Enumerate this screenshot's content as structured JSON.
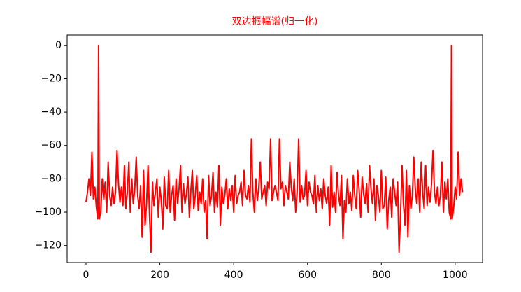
{
  "chart_data": {
    "type": "line",
    "title": "双边振幅谱(归一化)",
    "title_color": "#ff0000",
    "color": "#ff0000",
    "xlim": [
      -51.15,
      1074.15
    ],
    "ylim": [
      -130.2,
      6.2
    ],
    "xticks": [
      0,
      200,
      400,
      600,
      800,
      1000
    ],
    "yticks": [
      0,
      {
        "value": -20,
        "label": "−20"
      },
      {
        "value": -40,
        "label": "−40"
      },
      {
        "value": -60,
        "label": "−60"
      },
      {
        "value": -80,
        "label": "−80"
      },
      {
        "value": -100,
        "label": "−100"
      },
      {
        "value": -120,
        "label": "−120"
      }
    ],
    "x": [
      0,
      4,
      8,
      12,
      16,
      20,
      24,
      28,
      32,
      34,
      36,
      40,
      44,
      48,
      52,
      56,
      60,
      64,
      68,
      72,
      76,
      80,
      84,
      88,
      92,
      96,
      100,
      104,
      108,
      112,
      116,
      120,
      124,
      128,
      132,
      136,
      140,
      144,
      148,
      152,
      156,
      160,
      164,
      168,
      172,
      176,
      180,
      184,
      188,
      192,
      196,
      200,
      204,
      208,
      212,
      216,
      220,
      224,
      228,
      232,
      236,
      240,
      244,
      248,
      252,
      256,
      260,
      264,
      268,
      272,
      276,
      280,
      284,
      288,
      292,
      296,
      300,
      304,
      308,
      312,
      316,
      320,
      324,
      328,
      332,
      336,
      340,
      344,
      348,
      352,
      356,
      360,
      364,
      368,
      372,
      376,
      380,
      384,
      388,
      392,
      396,
      400,
      404,
      408,
      412,
      416,
      420,
      424,
      428,
      432,
      436,
      440,
      444,
      448,
      452,
      456,
      460,
      464,
      468,
      472,
      476,
      480,
      484,
      488,
      492,
      496,
      500,
      504,
      508,
      512,
      516,
      520,
      524,
      528,
      532,
      536,
      540,
      544,
      548,
      552,
      556,
      560,
      564,
      568,
      572,
      576,
      580,
      584,
      588,
      592,
      596,
      600,
      604,
      608,
      612,
      616,
      620,
      624,
      628,
      632,
      636,
      640,
      644,
      648,
      652,
      656,
      660,
      664,
      668,
      672,
      676,
      680,
      684,
      688,
      692,
      696,
      700,
      704,
      708,
      712,
      716,
      720,
      724,
      728,
      732,
      736,
      740,
      744,
      748,
      752,
      756,
      760,
      764,
      768,
      772,
      776,
      780,
      784,
      788,
      792,
      796,
      800,
      804,
      808,
      812,
      816,
      820,
      824,
      828,
      832,
      836,
      840,
      844,
      848,
      852,
      856,
      860,
      864,
      868,
      872,
      876,
      880,
      884,
      888,
      892,
      896,
      900,
      904,
      908,
      912,
      916,
      920,
      924,
      928,
      932,
      936,
      940,
      944,
      948,
      952,
      956,
      960,
      964,
      968,
      972,
      976,
      980,
      984,
      988,
      990,
      992,
      996,
      1000,
      1004,
      1008,
      1012,
      1016,
      1020
    ],
    "values": [
      -94,
      -88,
      -80,
      -90,
      -64,
      -92,
      -85,
      -97,
      -104,
      0,
      -104,
      -100,
      -80,
      -92,
      -82,
      -100,
      -70,
      -90,
      -96,
      -85,
      -95,
      -88,
      -63,
      -83,
      -94,
      -85,
      -96,
      -72,
      -98,
      -88,
      -70,
      -100,
      -80,
      -95,
      -86,
      -67,
      -90,
      -98,
      -84,
      -115,
      -75,
      -108,
      -95,
      -72,
      -102,
      -124,
      -82,
      -96,
      -88,
      -80,
      -103,
      -85,
      -93,
      -110,
      -79,
      -96,
      -98,
      -75,
      -100,
      -90,
      -84,
      -105,
      -80,
      -95,
      -86,
      -72,
      -100,
      -83,
      -95,
      -89,
      -79,
      -103,
      -87,
      -75,
      -98,
      -90,
      -78,
      -99,
      -88,
      -95,
      -80,
      -100,
      -93,
      -116,
      -78,
      -96,
      -90,
      -76,
      -100,
      -88,
      -97,
      -72,
      -108,
      -85,
      -95,
      -90,
      -80,
      -98,
      -86,
      -93,
      -84,
      -100,
      -78,
      -95,
      -90,
      -88,
      -82,
      -96,
      -75,
      -90,
      -92,
      -84,
      -94,
      -56,
      -88,
      -100,
      -80,
      -93,
      -85,
      -70,
      -92,
      -88,
      -84,
      -96,
      -82,
      -86,
      -56,
      -93,
      -88,
      -84,
      -88,
      -93,
      -56,
      -86,
      -82,
      -96,
      -84,
      -88,
      -92,
      -70,
      -85,
      -93,
      -80,
      -100,
      -88,
      -56,
      -94,
      -84,
      -92,
      -90,
      -75,
      -96,
      -82,
      -88,
      -90,
      -95,
      -78,
      -100,
      -84,
      -93,
      -86,
      -98,
      -80,
      -90,
      -95,
      -85,
      -108,
      -72,
      -97,
      -88,
      -100,
      -76,
      -90,
      -96,
      -78,
      -116,
      -93,
      -100,
      -80,
      -95,
      -88,
      -99,
      -78,
      -90,
      -98,
      -75,
      -87,
      -103,
      -79,
      -89,
      -95,
      -83,
      -100,
      -72,
      -86,
      -95,
      -80,
      -105,
      -84,
      -90,
      -100,
      -75,
      -98,
      -96,
      -79,
      -110,
      -93,
      -85,
      -103,
      -80,
      -88,
      -96,
      -82,
      -124,
      -102,
      -72,
      -95,
      -108,
      -75,
      -115,
      -84,
      -98,
      -90,
      -67,
      -86,
      -95,
      -80,
      -100,
      -70,
      -88,
      -98,
      -72,
      -96,
      -85,
      -94,
      -83,
      -63,
      -88,
      -95,
      -85,
      -96,
      -90,
      -70,
      -100,
      -82,
      -92,
      -80,
      -100,
      -104,
      0,
      -104,
      -97,
      -85,
      -92,
      -64,
      -90,
      -80,
      -88
    ]
  }
}
